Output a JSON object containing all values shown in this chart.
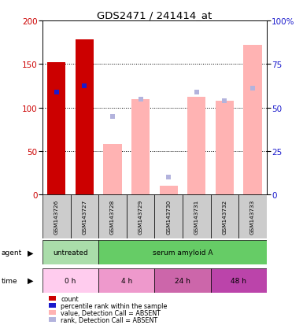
{
  "title": "GDS2471 / 241414_at",
  "samples": [
    "GSM143726",
    "GSM143727",
    "GSM143728",
    "GSM143729",
    "GSM143730",
    "GSM143731",
    "GSM143732",
    "GSM143733"
  ],
  "count_values": [
    152,
    178,
    null,
    null,
    null,
    null,
    null,
    null
  ],
  "percentile_rank": [
    59,
    62.5,
    null,
    null,
    null,
    null,
    null,
    null
  ],
  "absent_value": [
    null,
    null,
    58,
    110,
    10,
    112,
    108,
    172
  ],
  "absent_rank": [
    null,
    null,
    45,
    55,
    10,
    59,
    54,
    61
  ],
  "ylim_left": [
    0,
    200
  ],
  "ylim_right": [
    0,
    100
  ],
  "y_ticks_left": [
    0,
    50,
    100,
    150,
    200
  ],
  "y_ticks_right": [
    0,
    25,
    50,
    75,
    100
  ],
  "y_tick_labels_right": [
    "0",
    "25",
    "50",
    "75",
    "100%"
  ],
  "color_count": "#cc0000",
  "color_rank": "#1a1acc",
  "color_absent_value": "#ffb3b3",
  "color_absent_rank": "#b3b3dd",
  "agent_groups": [
    {
      "label": "untreated",
      "start": 0,
      "end": 2,
      "color": "#aaddaa"
    },
    {
      "label": "serum amyloid A",
      "start": 2,
      "end": 8,
      "color": "#66cc66"
    }
  ],
  "time_groups": [
    {
      "label": "0 h",
      "start": 0,
      "end": 2,
      "color": "#ffccee"
    },
    {
      "label": "4 h",
      "start": 2,
      "end": 4,
      "color": "#ee99cc"
    },
    {
      "label": "24 h",
      "start": 4,
      "end": 6,
      "color": "#cc66aa"
    },
    {
      "label": "48 h",
      "start": 6,
      "end": 8,
      "color": "#bb44aa"
    }
  ],
  "legend_items": [
    {
      "label": "count",
      "color": "#cc0000"
    },
    {
      "label": "percentile rank within the sample",
      "color": "#1a1acc"
    },
    {
      "label": "value, Detection Call = ABSENT",
      "color": "#ffb3b3"
    },
    {
      "label": "rank, Detection Call = ABSENT",
      "color": "#b3b3dd"
    }
  ],
  "fig_width": 3.85,
  "fig_height": 4.14,
  "dpi": 100
}
